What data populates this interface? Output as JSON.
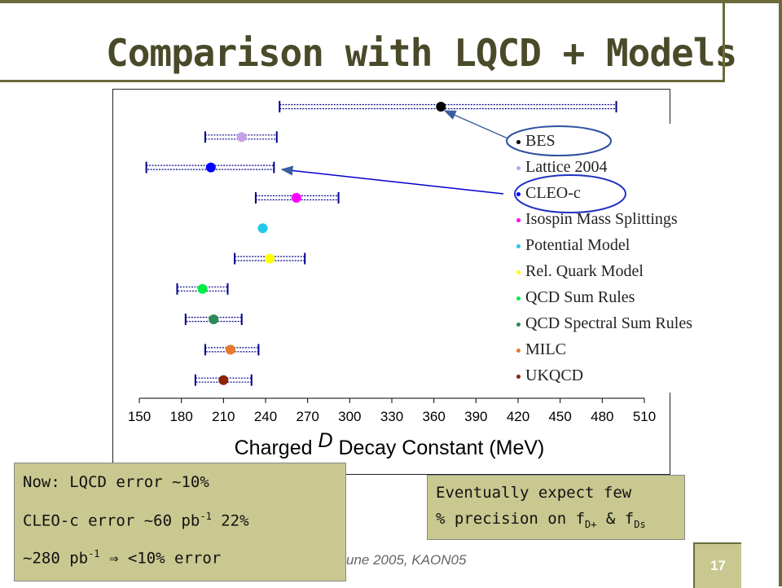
{
  "slide": {
    "title": "Comparison with LQCD + Models",
    "footer": "une 2005, KAON05",
    "page_number": "17",
    "colors": {
      "frame": "#6b6b3a",
      "note_bg": "#c8c890",
      "error_bar": "#00008b"
    }
  },
  "notes": {
    "left": {
      "line1": "Now: LQCD error ~10%",
      "line2_pre": "CLEO-c error ~60 pb",
      "line2_sup": "-1",
      "line2_post": " 22%",
      "line3_pre": "~280 pb",
      "line3_sup": "-1",
      "line3_arrow": " ⇒ ",
      "line3_post": "<10% error"
    },
    "right": {
      "line1": "Eventually expect few",
      "line2_pre": "% precision on f",
      "line2_sub1": "D+",
      "line2_mid": " & f",
      "line2_sub2": "Ds"
    }
  },
  "chart_data": {
    "type": "scatter",
    "xlabel_pre": "Charged ",
    "xlabel_d": "D",
    "xlabel_post": " Decay Constant (MeV)",
    "xlim": [
      145,
      515
    ],
    "xticks": [
      "150",
      "180",
      "210",
      "240",
      "270",
      "300",
      "330",
      "360",
      "390",
      "420",
      "450",
      "480",
      "510"
    ],
    "series": [
      {
        "name": "BES",
        "value": 365,
        "err_low": 250,
        "err_high": 490,
        "color": "#000000"
      },
      {
        "name": "Lattice 2004",
        "value": 223,
        "err_low": 197,
        "err_high": 248,
        "color": "#c8a0e8"
      },
      {
        "name": "CLEO-c",
        "value": 201,
        "err_low": 155,
        "err_high": 246,
        "color": "#0000ff"
      },
      {
        "name": "Isospin Mass Splittings",
        "value": 262,
        "err_low": 233,
        "err_high": 292,
        "color": "#ff00ff"
      },
      {
        "name": "Potential Model",
        "value": 238,
        "err_low": null,
        "err_high": null,
        "color": "#22c8e8"
      },
      {
        "name": "Rel. Quark Model",
        "value": 243,
        "err_low": 218,
        "err_high": 268,
        "color": "#ffff00"
      },
      {
        "name": "QCD Sum Rules",
        "value": 195,
        "err_low": 177,
        "err_high": 213,
        "color": "#00ee44"
      },
      {
        "name": "QCD Spectral Sum Rules",
        "value": 203,
        "err_low": 183,
        "err_high": 223,
        "color": "#2e8b57"
      },
      {
        "name": "MILC",
        "value": 215,
        "err_low": 197,
        "err_high": 235,
        "color": "#e8782c"
      },
      {
        "name": "UKQCD",
        "value": 210,
        "err_low": 190,
        "err_high": 230,
        "color": "#8b2500"
      }
    ],
    "legend_position": "right"
  }
}
